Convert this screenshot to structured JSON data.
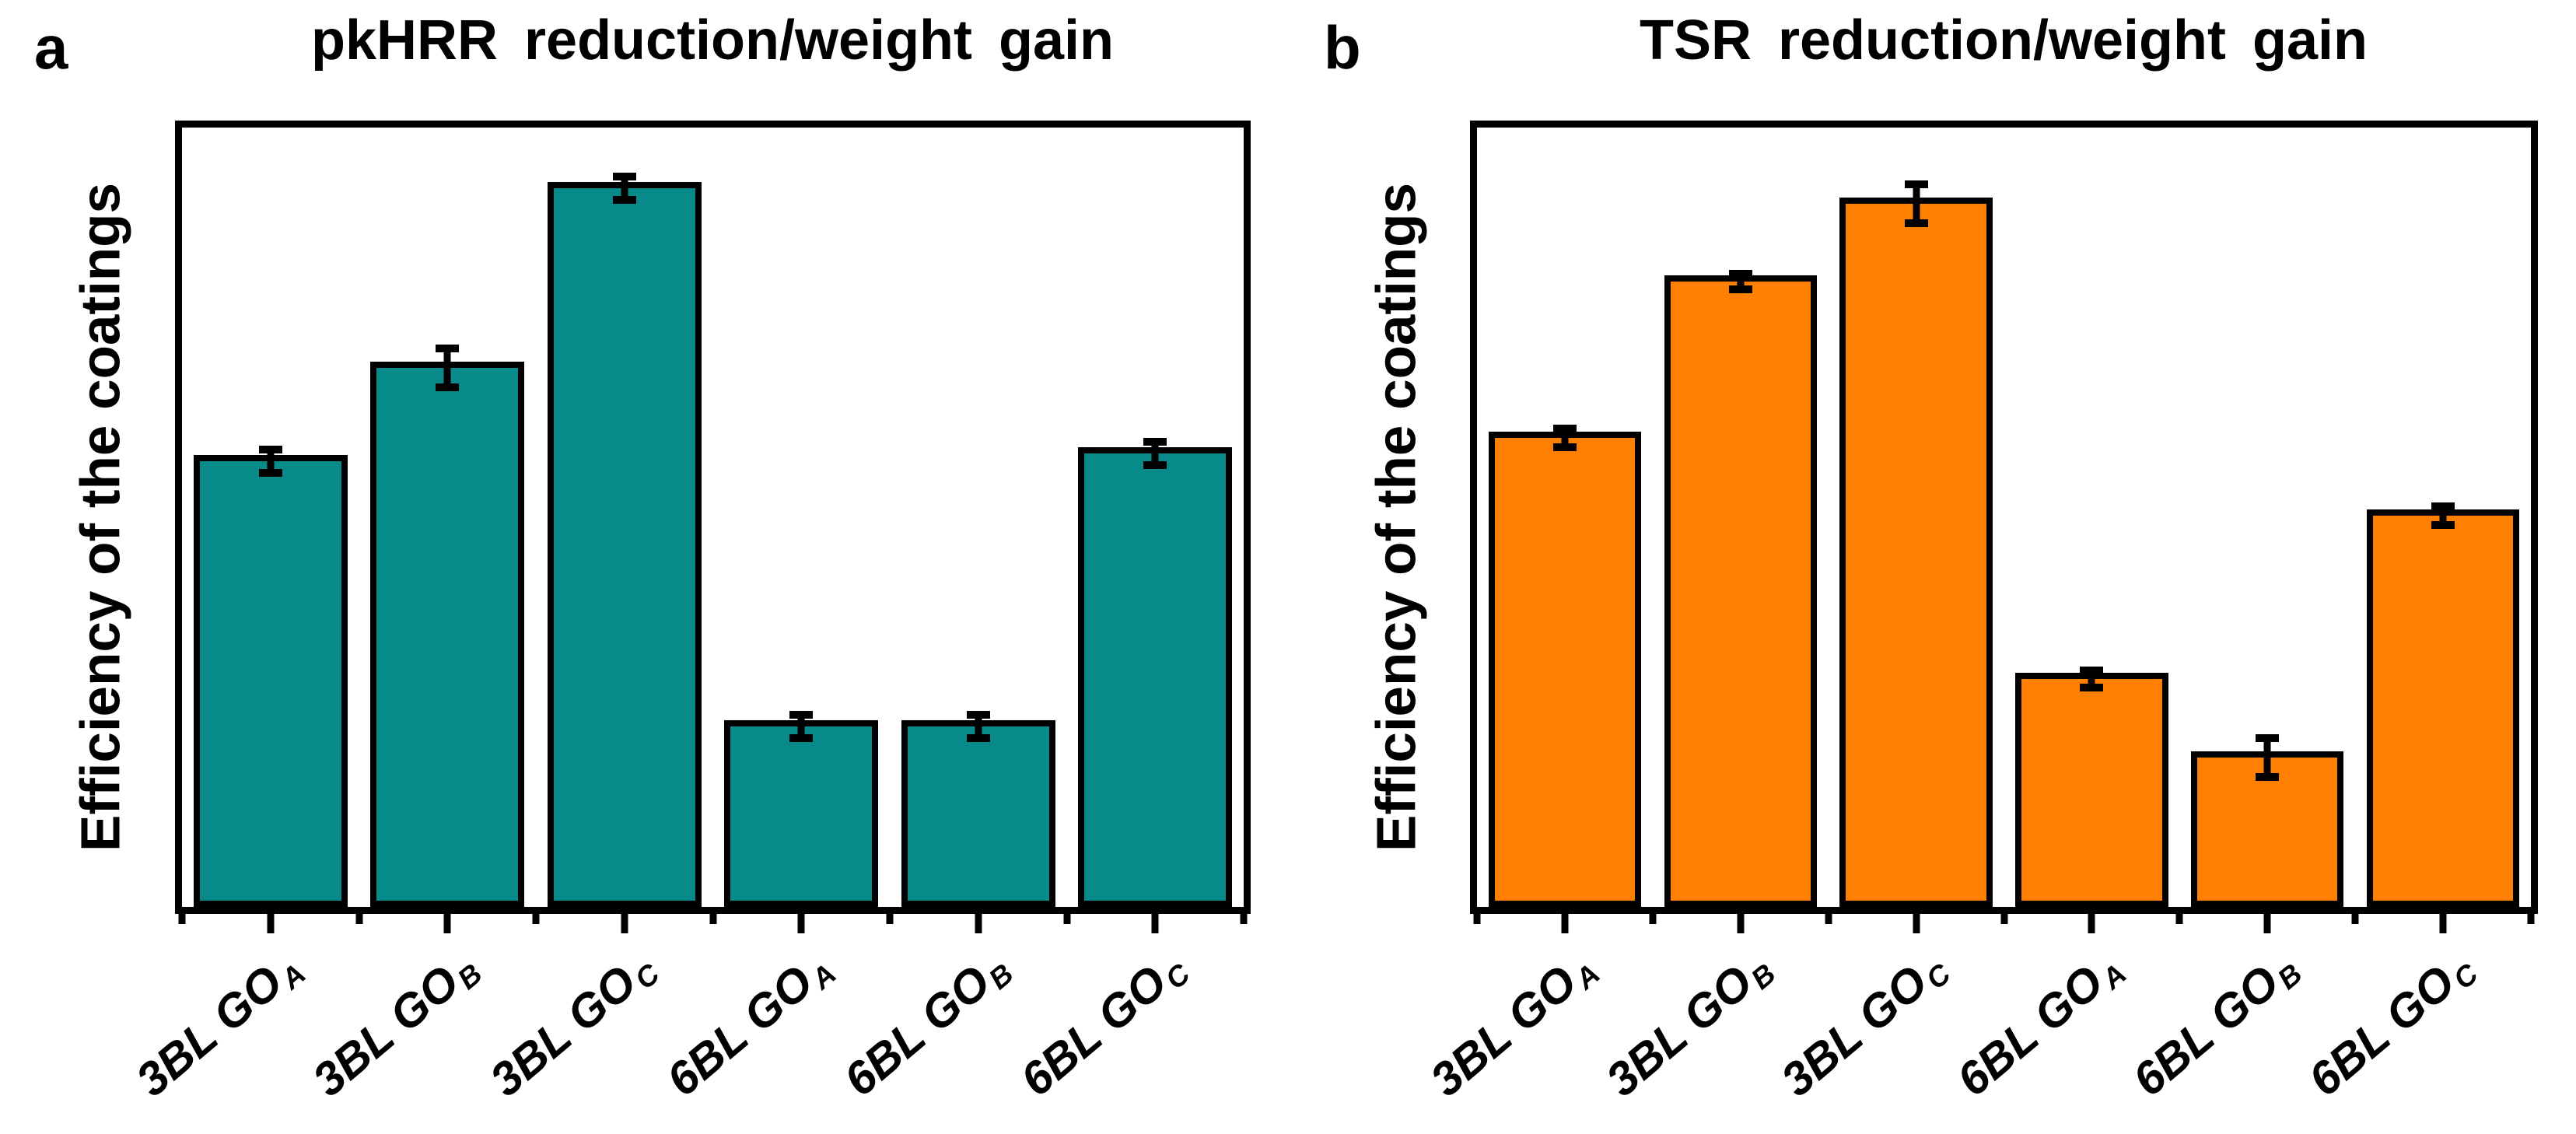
{
  "figure": {
    "background": "#ffffff",
    "text_color": "#000000"
  },
  "chart_data": [
    {
      "type": "bar",
      "panel_label": "a",
      "title": "pkHRR reduction/weight gain",
      "ylabel": "Efficiency of the coatings",
      "xlabel": "",
      "bar_color": "#088a8a",
      "bar_edge_color": "#000000",
      "error_bar_color": "#000000",
      "categories": [
        {
          "main": "3BL GO",
          "sub": "A"
        },
        {
          "main": "3BL GO",
          "sub": "B"
        },
        {
          "main": "3BL GO",
          "sub": "C"
        },
        {
          "main": "6BL GO",
          "sub": "A"
        },
        {
          "main": "6BL GO",
          "sub": "B"
        },
        {
          "main": "6BL GO",
          "sub": "C"
        }
      ],
      "values": [
        58,
        70,
        93,
        24,
        24,
        59
      ],
      "errors": [
        2,
        3,
        2,
        2,
        2,
        2
      ],
      "ylim": [
        0,
        100
      ],
      "y_tick_labels_shown": false,
      "grid": false,
      "legend": false
    },
    {
      "type": "bar",
      "panel_label": "b",
      "title": "TSR reduction/weight gain",
      "ylabel": "Efficiency of the coatings",
      "xlabel": "",
      "bar_color": "#ff8000",
      "bar_edge_color": "#000000",
      "error_bar_color": "#000000",
      "categories": [
        {
          "main": "3BL GO",
          "sub": "A"
        },
        {
          "main": "3BL GO",
          "sub": "B"
        },
        {
          "main": "3BL GO",
          "sub": "C"
        },
        {
          "main": "6BL GO",
          "sub": "A"
        },
        {
          "main": "6BL GO",
          "sub": "B"
        },
        {
          "main": "6BL GO",
          "sub": "C"
        }
      ],
      "values": [
        61,
        81,
        91,
        30,
        20,
        51
      ],
      "errors": [
        1.7,
        1.5,
        3,
        1.6,
        3,
        1.7
      ],
      "ylim": [
        0,
        100
      ],
      "y_tick_labels_shown": false,
      "grid": false,
      "legend": false
    }
  ]
}
